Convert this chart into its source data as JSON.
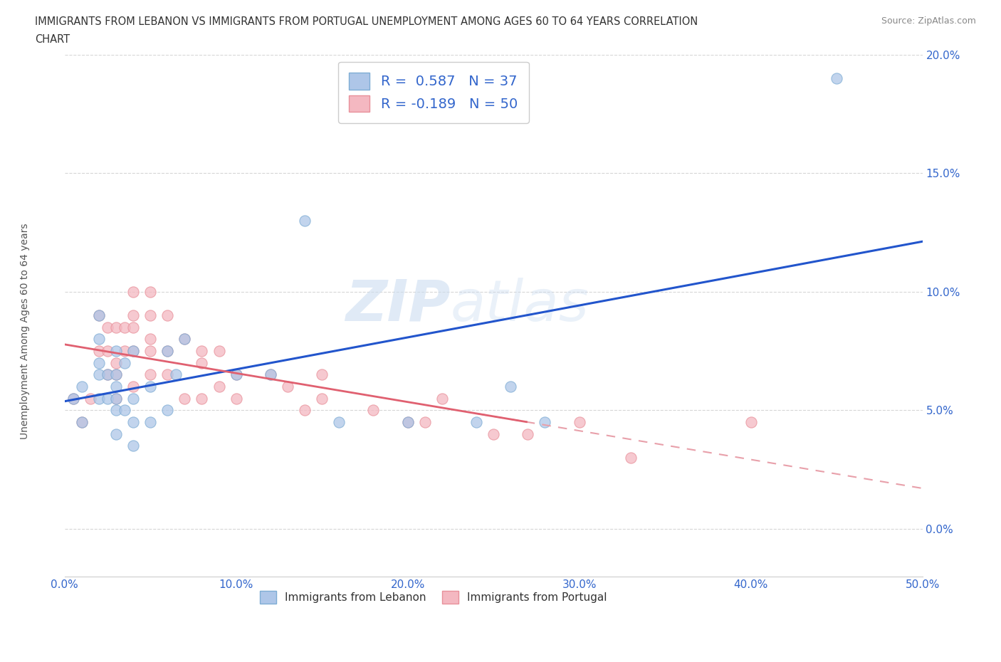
{
  "title_line1": "IMMIGRANTS FROM LEBANON VS IMMIGRANTS FROM PORTUGAL UNEMPLOYMENT AMONG AGES 60 TO 64 YEARS CORRELATION",
  "title_line2": "CHART",
  "source": "Source: ZipAtlas.com",
  "ylabel": "Unemployment Among Ages 60 to 64 years",
  "xlim": [
    0.0,
    0.5
  ],
  "ylim": [
    -0.02,
    0.2
  ],
  "xticks": [
    0.0,
    0.1,
    0.2,
    0.3,
    0.4,
    0.5
  ],
  "yticks": [
    0.0,
    0.05,
    0.1,
    0.15,
    0.2
  ],
  "xticklabels": [
    "0.0%",
    "10.0%",
    "20.0%",
    "30.0%",
    "40.0%",
    "50.0%"
  ],
  "yticklabels": [
    "0.0%",
    "5.0%",
    "10.0%",
    "15.0%",
    "20.0%"
  ],
  "lebanon_scatter_color": "#aec6e8",
  "portugal_scatter_color": "#f4b8c1",
  "lebanon_edge_color": "#7eadd4",
  "portugal_edge_color": "#e8909a",
  "trend_lebanon_color": "#2255cc",
  "trend_portugal_color": "#e06070",
  "trend_portugal_dash_color": "#e8a0aa",
  "R_lebanon": 0.587,
  "N_lebanon": 37,
  "R_portugal": -0.189,
  "N_portugal": 50,
  "watermark": "ZIPatlas",
  "legend_label_lebanon": "Immigrants from Lebanon",
  "legend_label_portugal": "Immigrants from Portugal",
  "lebanon_x": [
    0.005,
    0.01,
    0.01,
    0.02,
    0.02,
    0.02,
    0.02,
    0.02,
    0.025,
    0.025,
    0.03,
    0.03,
    0.03,
    0.03,
    0.03,
    0.03,
    0.035,
    0.035,
    0.04,
    0.04,
    0.04,
    0.04,
    0.05,
    0.05,
    0.06,
    0.06,
    0.065,
    0.07,
    0.1,
    0.12,
    0.14,
    0.16,
    0.2,
    0.24,
    0.26,
    0.28,
    0.45
  ],
  "lebanon_y": [
    0.055,
    0.045,
    0.06,
    0.055,
    0.065,
    0.07,
    0.08,
    0.09,
    0.055,
    0.065,
    0.04,
    0.05,
    0.055,
    0.06,
    0.065,
    0.075,
    0.05,
    0.07,
    0.035,
    0.045,
    0.055,
    0.075,
    0.045,
    0.06,
    0.05,
    0.075,
    0.065,
    0.08,
    0.065,
    0.065,
    0.13,
    0.045,
    0.045,
    0.045,
    0.06,
    0.045,
    0.19
  ],
  "portugal_x": [
    0.005,
    0.01,
    0.015,
    0.02,
    0.02,
    0.025,
    0.025,
    0.025,
    0.03,
    0.03,
    0.03,
    0.03,
    0.035,
    0.035,
    0.04,
    0.04,
    0.04,
    0.04,
    0.04,
    0.05,
    0.05,
    0.05,
    0.05,
    0.05,
    0.06,
    0.06,
    0.06,
    0.07,
    0.07,
    0.08,
    0.08,
    0.08,
    0.09,
    0.09,
    0.1,
    0.1,
    0.12,
    0.13,
    0.14,
    0.15,
    0.15,
    0.18,
    0.2,
    0.21,
    0.22,
    0.25,
    0.27,
    0.3,
    0.33,
    0.4
  ],
  "portugal_y": [
    0.055,
    0.045,
    0.055,
    0.09,
    0.075,
    0.065,
    0.075,
    0.085,
    0.055,
    0.065,
    0.07,
    0.085,
    0.075,
    0.085,
    0.06,
    0.075,
    0.085,
    0.09,
    0.1,
    0.065,
    0.075,
    0.08,
    0.09,
    0.1,
    0.065,
    0.075,
    0.09,
    0.055,
    0.08,
    0.055,
    0.07,
    0.075,
    0.06,
    0.075,
    0.055,
    0.065,
    0.065,
    0.06,
    0.05,
    0.055,
    0.065,
    0.05,
    0.045,
    0.045,
    0.055,
    0.04,
    0.04,
    0.045,
    0.03,
    0.045
  ]
}
